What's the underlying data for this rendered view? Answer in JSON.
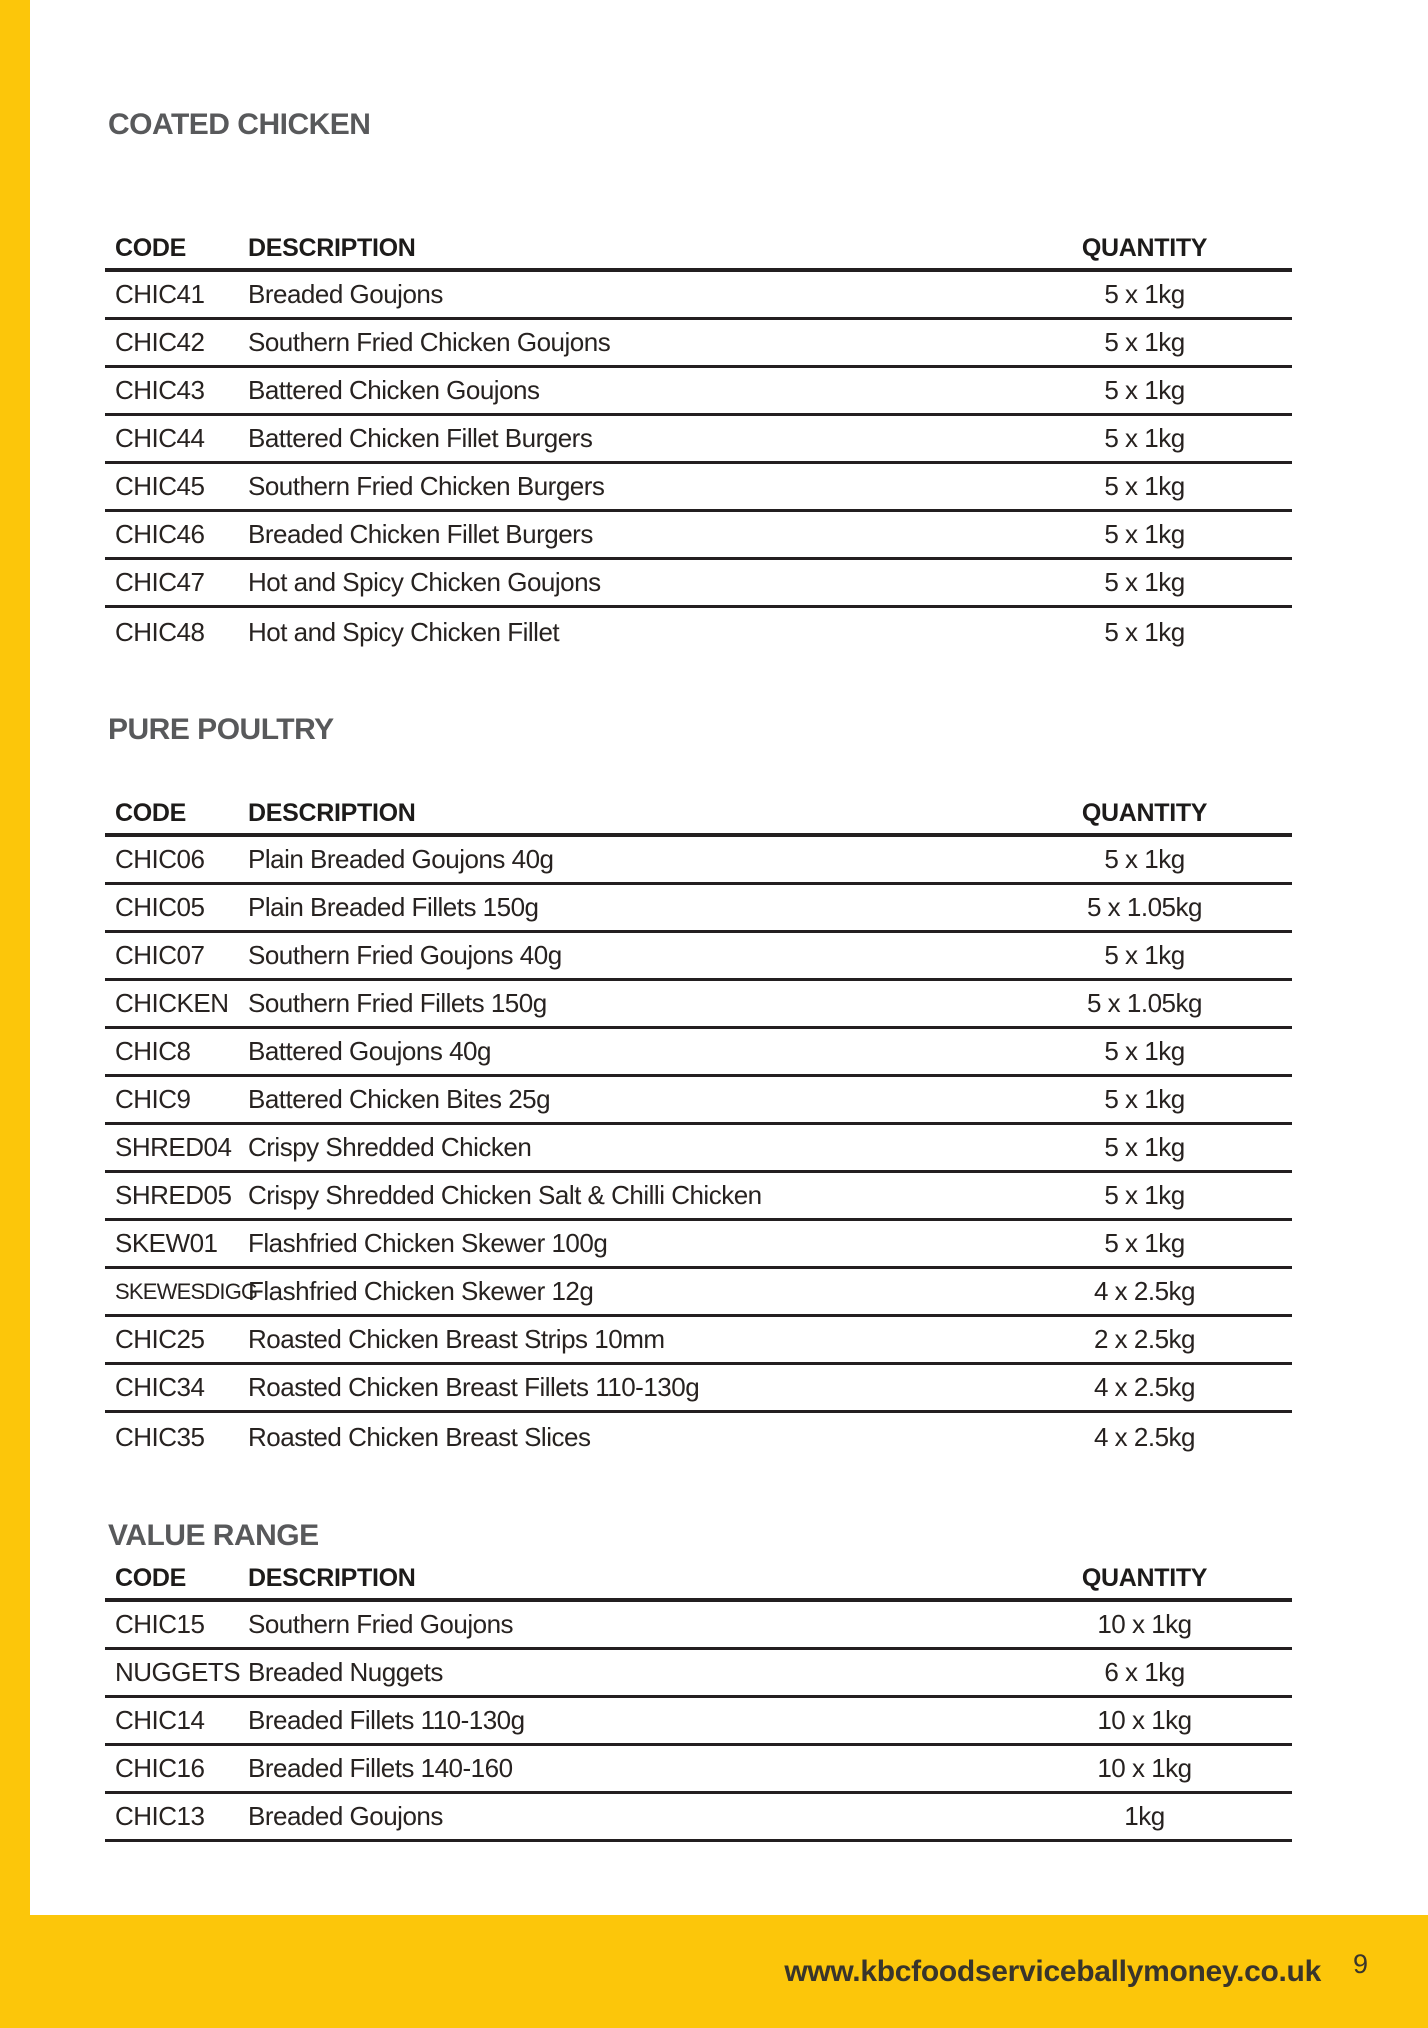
{
  "page": {
    "website": "www.kbcfoodserviceballymoney.co.uk",
    "number": "9"
  },
  "theme": {
    "accent_yellow": "#FCC60A",
    "heading_gray": "#58595B",
    "text_dark": "#272220",
    "rule_black": "#231F20"
  },
  "sections": [
    {
      "heading": "COATED CHICKEN",
      "columns": {
        "code": "CODE",
        "description": "DESCRIPTION",
        "quantity": "QUANTITY"
      },
      "rows": [
        {
          "code": "CHIC41",
          "description": "Breaded Goujons",
          "quantity": "5 x 1kg"
        },
        {
          "code": "CHIC42",
          "description": "Southern Fried Chicken Goujons",
          "quantity": "5 x 1kg"
        },
        {
          "code": "CHIC43",
          "description": "Battered Chicken Goujons",
          "quantity": "5 x 1kg"
        },
        {
          "code": "CHIC44",
          "description": "Battered Chicken Fillet Burgers",
          "quantity": "5 x 1kg"
        },
        {
          "code": "CHIC45",
          "description": "Southern Fried Chicken Burgers",
          "quantity": "5 x 1kg"
        },
        {
          "code": "CHIC46",
          "description": "Breaded Chicken Fillet Burgers",
          "quantity": "5 x 1kg"
        },
        {
          "code": "CHIC47",
          "description": "Hot and Spicy Chicken Goujons",
          "quantity": "5 x 1kg"
        },
        {
          "code": "CHIC48",
          "description": "Hot and Spicy Chicken Fillet",
          "quantity": "5 x 1kg"
        }
      ]
    },
    {
      "heading": "PURE POULTRY",
      "columns": {
        "code": "CODE",
        "description": "DESCRIPTION",
        "quantity": "QUANTITY"
      },
      "rows": [
        {
          "code": "CHIC06",
          "description": "Plain Breaded Goujons 40g",
          "quantity": "5 x 1kg"
        },
        {
          "code": "CHIC05",
          "description": "Plain Breaded Fillets 150g",
          "quantity": "5 x 1.05kg"
        },
        {
          "code": "CHIC07",
          "description": "Southern Fried Goujons 40g",
          "quantity": "5 x 1kg"
        },
        {
          "code": "CHICKEN",
          "description": "Southern Fried Fillets 150g",
          "quantity": "5 x 1.05kg"
        },
        {
          "code": "CHIC8",
          "description": "Battered Goujons 40g",
          "quantity": "5 x 1kg"
        },
        {
          "code": "CHIC9",
          "description": "Battered Chicken Bites 25g",
          "quantity": "5 x 1kg"
        },
        {
          "code": "SHRED04",
          "description": "Crispy Shredded Chicken",
          "quantity": "5 x 1kg"
        },
        {
          "code": "SHRED05",
          "description": "Crispy Shredded Chicken Salt & Chilli Chicken",
          "quantity": "5 x 1kg"
        },
        {
          "code": "SKEW01",
          "description": "Flashfried Chicken Skewer 100g",
          "quantity": "5 x 1kg"
        },
        {
          "code": "SKEWESDIGG",
          "description": "Flashfried Chicken Skewer 12g",
          "quantity": "4 x 2.5kg"
        },
        {
          "code": "CHIC25",
          "description": "Roasted Chicken Breast Strips 10mm",
          "quantity": "2 x 2.5kg"
        },
        {
          "code": "CHIC34",
          "description": "Roasted Chicken Breast Fillets 110-130g",
          "quantity": "4 x 2.5kg"
        },
        {
          "code": "CHIC35",
          "description": "Roasted Chicken Breast Slices",
          "quantity": "4 x 2.5kg"
        }
      ]
    },
    {
      "heading": "VALUE RANGE",
      "columns": {
        "code": "CODE",
        "description": "DESCRIPTION",
        "quantity": "QUANTITY"
      },
      "rows": [
        {
          "code": "CHIC15",
          "description": "Southern Fried Goujons",
          "quantity": "10 x 1kg"
        },
        {
          "code": "NUGGETS",
          "description": "Breaded Nuggets",
          "quantity": "6 x 1kg"
        },
        {
          "code": "CHIC14",
          "description": "Breaded Fillets 110-130g",
          "quantity": "10 x 1kg"
        },
        {
          "code": "CHIC16",
          "description": "Breaded Fillets 140-160",
          "quantity": "10 x 1kg"
        },
        {
          "code": "CHIC13",
          "description": "Breaded Goujons",
          "quantity": "1kg"
        }
      ]
    }
  ]
}
